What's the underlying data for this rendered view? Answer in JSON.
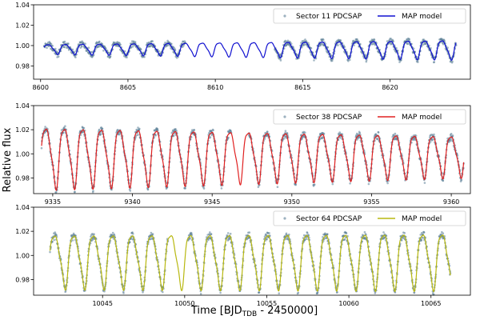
{
  "figure": {
    "ylabel": "Relative flux",
    "xlabel_main": "Time [BJD",
    "xlabel_sub": "TDB",
    "xlabel_rest": " - 2450000]"
  },
  "chart_data": [
    {
      "type": "line",
      "legend": {
        "position": "top-right",
        "data_label": "Sector 11 PDCSAP",
        "model_label": "MAP model"
      },
      "colors": {
        "model": "#1010d0",
        "data": "#5a7d95"
      },
      "xlim": [
        8599.6,
        8624.6
      ],
      "ylim": [
        0.967,
        1.04
      ],
      "xticks": [
        8600,
        8605,
        8610,
        8615,
        8620
      ],
      "xtick_labels": [
        "8600",
        "8605",
        "8610",
        "8615",
        "8620"
      ],
      "yticks": [
        0.98,
        1.0,
        1.02,
        1.04
      ],
      "ytick_labels": [
        "0.98",
        "1.00",
        "1.02",
        "1.04"
      ],
      "series": [
        {
          "name": "Sector 11 PDCSAP",
          "role": "data",
          "segments": [
            [
              8600.2,
              8608.3
            ],
            [
              8613.4,
              8623.8
            ]
          ]
        },
        {
          "name": "MAP model",
          "role": "model",
          "x_range": [
            8600.2,
            8623.8
          ],
          "period_days": 0.98,
          "mean": 0.997,
          "amplitude_start": 0.0045,
          "amplitude_end": 0.009
        }
      ]
    },
    {
      "type": "line",
      "legend": {
        "position": "top-right",
        "data_label": "Sector 38 PDCSAP",
        "model_label": "MAP model"
      },
      "colors": {
        "model": "#e02020",
        "data": "#5a7d95"
      },
      "xlim": [
        9333.8,
        9361.2
      ],
      "ylim": [
        0.967,
        1.04
      ],
      "xticks": [
        9335,
        9340,
        9345,
        9350,
        9355,
        9360
      ],
      "xtick_labels": [
        "9335",
        "9340",
        "9345",
        "9350",
        "9355",
        "9360"
      ],
      "yticks": [
        0.98,
        1.0,
        1.02,
        1.04
      ],
      "ytick_labels": [
        "0.98",
        "1.00",
        "1.02",
        "1.04"
      ],
      "series": [
        {
          "name": "Sector 38 PDCSAP",
          "role": "data",
          "segments": [
            [
              9334.3,
              9346.2
            ],
            [
              9347.3,
              9360.8
            ]
          ]
        },
        {
          "name": "MAP model",
          "role": "model",
          "x_range": [
            9334.3,
            9360.8
          ],
          "period_days": 1.155,
          "mean": 1.0,
          "amplitude_start": 0.024,
          "amplitude_end": 0.016
        }
      ]
    },
    {
      "type": "line",
      "legend": {
        "position": "top-right",
        "data_label": "Sector 64 PDCSAP",
        "model_label": "MAP model"
      },
      "colors": {
        "model": "#b8b810",
        "data": "#5a7d95"
      },
      "xlim": [
        10040.8,
        10067.4
      ],
      "ylim": [
        0.967,
        1.04
      ],
      "xticks": [
        10045,
        10050,
        10055,
        10060,
        10065
      ],
      "xtick_labels": [
        "10045",
        "10050",
        "10055",
        "10060",
        "10065"
      ],
      "yticks": [
        0.98,
        1.0,
        1.02,
        1.04
      ],
      "ytick_labels": [
        "0.98",
        "1.00",
        "1.02",
        "1.04"
      ],
      "series": [
        {
          "name": "Sector 64 PDCSAP",
          "role": "data",
          "segments": [
            [
              10041.8,
              10049.0
            ],
            [
              10050.2,
              10066.2
            ]
          ]
        },
        {
          "name": "MAP model",
          "role": "model",
          "x_range": [
            10041.8,
            10066.2
          ],
          "period_days": 1.18,
          "mean": 0.998,
          "amplitude_start": 0.021,
          "amplitude_end": 0.022
        }
      ]
    }
  ]
}
